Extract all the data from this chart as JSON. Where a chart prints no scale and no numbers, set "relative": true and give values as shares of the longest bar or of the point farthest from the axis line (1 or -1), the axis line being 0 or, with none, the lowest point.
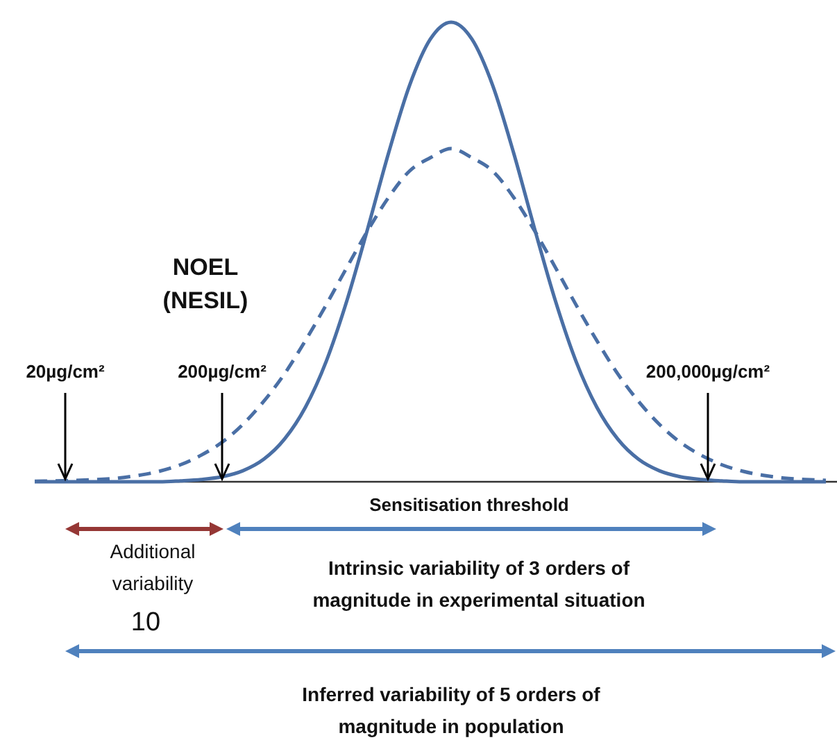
{
  "chart_data": {
    "type": "line",
    "relative": true,
    "categories": [
      null,
      null,
      null,
      null,
      null,
      null,
      null,
      null,
      null,
      null,
      null,
      null,
      null,
      null,
      null,
      null,
      null,
      null,
      null,
      null,
      null,
      null,
      null,
      null,
      null,
      null,
      null,
      null,
      null,
      null,
      null,
      null,
      null,
      null,
      null,
      null,
      null,
      null,
      null
    ],
    "series": [
      {
        "color": "#4a6fa5",
        "line_style": "solid",
        "values": [
          0,
          0,
          0,
          0,
          0,
          0,
          0,
          0.002,
          0.005,
          0.011,
          0.024,
          0.049,
          0.093,
          0.162,
          0.262,
          0.395,
          0.552,
          0.716,
          0.862,
          0.963,
          1,
          0.963,
          0.862,
          0.716,
          0.552,
          0.395,
          0.262,
          0.162,
          0.093,
          0.049,
          0.024,
          0.011,
          0.005,
          0.002,
          0,
          0,
          0,
          0,
          0
        ]
      },
      {
        "color": "#4a6fa5",
        "line_style": "dashed",
        "values": [
          0.001,
          0.002,
          0.003,
          0.005,
          0.008,
          0.014,
          0.023,
          0.037,
          0.058,
          0.086,
          0.125,
          0.175,
          0.235,
          0.307,
          0.385,
          0.467,
          0.547,
          0.619,
          0.676,
          0.705,
          0.725,
          0.705,
          0.676,
          0.619,
          0.547,
          0.467,
          0.385,
          0.307,
          0.235,
          0.175,
          0.125,
          0.086,
          0.058,
          0.037,
          0.023,
          0.014,
          0.008,
          0.005,
          0.003
        ]
      }
    ],
    "annotations": [
      "NOEL",
      "(NESIL)",
      "20µg/cm²",
      "200µg/cm²",
      "200,000µg/cm²",
      "Sensitisation threshold",
      "Additional",
      "variability",
      "10",
      "Intrinsic variability of 3 orders of",
      "magnitude  in experimental situation",
      "Inferred variability of 5 orders of",
      "magnitude  in population"
    ]
  }
}
